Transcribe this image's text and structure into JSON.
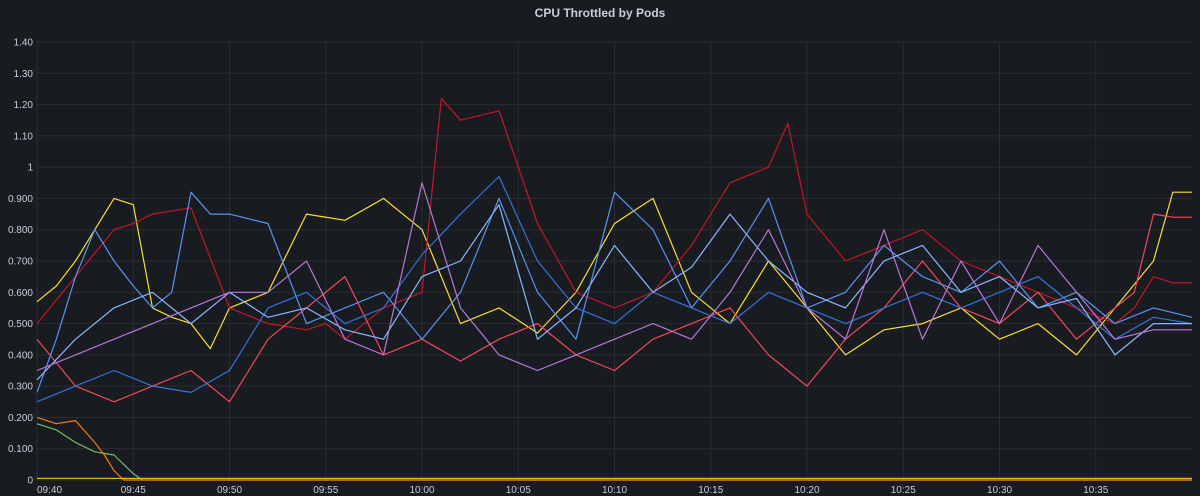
{
  "panel": {
    "title": "CPU Throttled by Pods"
  },
  "chart_data": {
    "type": "line",
    "title": "CPU Throttled by Pods",
    "xlabel": "",
    "ylabel": "",
    "x_ticks": [
      "09:40",
      "09:45",
      "09:50",
      "09:55",
      "10:00",
      "10:05",
      "10:10",
      "10:15",
      "10:20",
      "10:25",
      "10:30",
      "10:35"
    ],
    "y_ticks": [
      "0",
      "0.100",
      "0.200",
      "0.300",
      "0.400",
      "0.500",
      "0.600",
      "0.700",
      "0.800",
      "0.900",
      "1",
      "1.10",
      "1.20",
      "1.30",
      "1.40"
    ],
    "xlim": [
      0,
      60
    ],
    "ylim": [
      0,
      1.4
    ],
    "grid": true,
    "legend": "none",
    "x_unit": "minutes since 09:40",
    "series": [
      {
        "color": "#fade2a",
        "x": [
          0,
          1,
          2,
          3,
          4,
          5,
          6,
          7,
          8,
          9,
          10,
          12,
          14,
          16,
          18,
          20,
          22,
          24,
          26,
          28,
          30,
          32,
          34,
          36,
          38,
          40,
          42,
          44,
          46,
          48,
          50,
          52,
          54,
          56,
          58,
          59,
          60
        ],
        "values": [
          0.57,
          0.62,
          0.7,
          0.8,
          0.9,
          0.88,
          0.55,
          0.52,
          0.5,
          0.42,
          0.55,
          0.6,
          0.85,
          0.83,
          0.9,
          0.8,
          0.5,
          0.55,
          0.47,
          0.6,
          0.82,
          0.9,
          0.6,
          0.5,
          0.7,
          0.55,
          0.4,
          0.48,
          0.5,
          0.55,
          0.45,
          0.5,
          0.4,
          0.55,
          0.7,
          0.92,
          0.92
        ]
      },
      {
        "color": "#c4162a",
        "x": [
          0,
          2,
          4,
          5,
          6,
          8,
          10,
          12,
          14,
          15,
          16,
          18,
          20,
          21,
          22,
          24,
          25,
          26,
          28,
          30,
          32,
          34,
          36,
          38,
          39,
          40,
          42,
          44,
          46,
          48,
          50,
          52,
          54,
          56,
          57,
          58,
          59,
          60
        ],
        "values": [
          0.5,
          0.65,
          0.8,
          0.82,
          0.85,
          0.87,
          0.55,
          0.5,
          0.48,
          0.5,
          0.45,
          0.55,
          0.6,
          1.22,
          1.15,
          1.18,
          1.0,
          0.82,
          0.6,
          0.55,
          0.6,
          0.75,
          0.95,
          1.0,
          1.14,
          0.85,
          0.7,
          0.75,
          0.8,
          0.7,
          0.65,
          0.6,
          0.55,
          0.5,
          0.55,
          0.65,
          0.63,
          0.63
        ]
      },
      {
        "color": "#f2495c",
        "x": [
          0,
          2,
          4,
          6,
          8,
          10,
          12,
          14,
          16,
          18,
          20,
          22,
          24,
          26,
          28,
          30,
          32,
          34,
          36,
          38,
          40,
          42,
          44,
          46,
          48,
          50,
          52,
          54,
          56,
          57,
          58,
          59,
          60
        ],
        "values": [
          0.45,
          0.3,
          0.25,
          0.3,
          0.35,
          0.25,
          0.45,
          0.55,
          0.65,
          0.4,
          0.45,
          0.38,
          0.45,
          0.5,
          0.4,
          0.35,
          0.45,
          0.5,
          0.55,
          0.4,
          0.3,
          0.45,
          0.55,
          0.7,
          0.55,
          0.5,
          0.6,
          0.45,
          0.55,
          0.6,
          0.85,
          0.84,
          0.84
        ]
      },
      {
        "color": "#5794f2",
        "x": [
          0,
          1,
          2,
          3,
          4,
          5,
          6,
          7,
          8,
          9,
          10,
          12,
          14,
          16,
          18,
          20,
          22,
          24,
          26,
          28,
          30,
          32,
          34,
          36,
          38,
          40,
          42,
          44,
          46,
          48,
          50,
          52,
          54,
          56,
          58,
          60
        ],
        "values": [
          0.28,
          0.45,
          0.65,
          0.8,
          0.7,
          0.62,
          0.55,
          0.6,
          0.92,
          0.85,
          0.85,
          0.82,
          0.5,
          0.55,
          0.6,
          0.45,
          0.6,
          0.9,
          0.6,
          0.45,
          0.92,
          0.8,
          0.55,
          0.7,
          0.9,
          0.55,
          0.6,
          0.75,
          0.65,
          0.6,
          0.7,
          0.55,
          0.6,
          0.5,
          0.55,
          0.52
        ]
      },
      {
        "color": "#3274d9",
        "x": [
          0,
          2,
          4,
          6,
          8,
          10,
          12,
          14,
          16,
          18,
          20,
          22,
          24,
          26,
          28,
          30,
          32,
          34,
          36,
          38,
          40,
          42,
          44,
          46,
          48,
          50,
          52,
          54,
          56,
          58,
          60
        ],
        "values": [
          0.25,
          0.3,
          0.35,
          0.3,
          0.28,
          0.35,
          0.55,
          0.6,
          0.5,
          0.55,
          0.72,
          0.85,
          0.97,
          0.7,
          0.55,
          0.5,
          0.6,
          0.55,
          0.5,
          0.6,
          0.55,
          0.5,
          0.55,
          0.6,
          0.55,
          0.6,
          0.65,
          0.55,
          0.45,
          0.52,
          0.5
        ]
      },
      {
        "color": "#8ab8ff",
        "x": [
          0,
          2,
          4,
          6,
          8,
          10,
          12,
          14,
          16,
          18,
          20,
          22,
          24,
          26,
          28,
          30,
          32,
          34,
          36,
          38,
          40,
          42,
          44,
          46,
          48,
          50,
          52,
          54,
          56,
          58,
          60
        ],
        "values": [
          0.32,
          0.45,
          0.55,
          0.6,
          0.5,
          0.6,
          0.52,
          0.55,
          0.48,
          0.45,
          0.65,
          0.7,
          0.88,
          0.45,
          0.55,
          0.75,
          0.6,
          0.68,
          0.85,
          0.7,
          0.6,
          0.55,
          0.7,
          0.75,
          0.6,
          0.65,
          0.55,
          0.58,
          0.4,
          0.5,
          0.5
        ]
      },
      {
        "color": "#b877d9",
        "x": [
          0,
          2,
          4,
          6,
          8,
          10,
          12,
          14,
          16,
          18,
          20,
          22,
          24,
          26,
          28,
          30,
          32,
          34,
          36,
          38,
          40,
          42,
          44,
          46,
          48,
          50,
          52,
          54,
          56,
          58,
          60
        ],
        "values": [
          0.35,
          0.4,
          0.45,
          0.5,
          0.55,
          0.6,
          0.6,
          0.7,
          0.45,
          0.4,
          0.95,
          0.55,
          0.4,
          0.35,
          0.4,
          0.45,
          0.5,
          0.45,
          0.6,
          0.8,
          0.55,
          0.45,
          0.8,
          0.45,
          0.7,
          0.5,
          0.75,
          0.6,
          0.45,
          0.48,
          0.48
        ]
      },
      {
        "color": "#73bf69",
        "x": [
          0,
          1,
          2,
          3,
          4,
          5,
          5.5,
          6,
          60
        ],
        "values": [
          0.18,
          0.16,
          0.12,
          0.09,
          0.08,
          0.02,
          0,
          0,
          0
        ]
      },
      {
        "color": "#ff780a",
        "x": [
          0,
          1,
          2,
          3,
          3.5,
          4,
          4.5,
          60
        ],
        "values": [
          0.2,
          0.18,
          0.19,
          0.12,
          0.08,
          0.03,
          0,
          0
        ]
      },
      {
        "color": "#e0b400",
        "x": [
          0,
          60
        ],
        "values": [
          0.005,
          0.005
        ]
      }
    ]
  }
}
